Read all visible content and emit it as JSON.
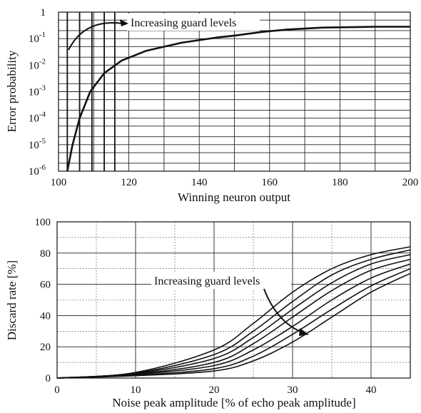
{
  "chart_data": [
    {
      "type": "line",
      "xlabel": "Winning neuron output",
      "ylabel": "Error probability",
      "xlim": [
        100,
        200
      ],
      "ylim": [
        1e-06,
        1
      ],
      "yscale": "log",
      "grid": true,
      "xticks": [
        "100",
        "120",
        "140",
        "160",
        "180",
        "200"
      ],
      "yticks": [
        {
          "base": "1",
          "exp": ""
        },
        {
          "base": "10",
          "exp": "-1"
        },
        {
          "base": "10",
          "exp": "-2"
        },
        {
          "base": "10",
          "exp": "-3"
        },
        {
          "base": "10",
          "exp": "-4"
        },
        {
          "base": "10",
          "exp": "-5"
        },
        {
          "base": "10",
          "exp": "-6"
        }
      ],
      "series": [
        {
          "values": [
            [
              102.5,
              1e-06
            ],
            [
              104,
              1e-05
            ],
            [
              106,
              0.0001
            ],
            [
              109,
              0.001
            ],
            [
              113,
              0.005
            ],
            [
              118,
              0.015
            ],
            [
              125,
              0.035
            ],
            [
              135,
              0.07
            ],
            [
              145,
              0.11
            ],
            [
              150,
              0.13
            ],
            [
              158,
              0.18
            ],
            [
              165,
              0.22
            ],
            [
              175,
              0.26
            ],
            [
              190,
              0.28
            ],
            [
              200,
              0.28
            ]
          ]
        }
      ],
      "guard_levels": [
        102.5,
        106,
        109.5,
        113,
        116
      ],
      "annotation": "Increasing guard levels"
    },
    {
      "type": "line",
      "xlabel": "Noise peak amplitude [% of echo peak amplitude]",
      "ylabel": "Discard rate [%]",
      "xlim": [
        0,
        45
      ],
      "ylim": [
        0,
        100
      ],
      "grid": true,
      "xticks": [
        "0",
        "10",
        "20",
        "30",
        "40"
      ],
      "yticks": [
        "0",
        "20",
        "40",
        "60",
        "80",
        "100"
      ],
      "series": [
        {
          "values": [
            [
              0,
              0
            ],
            [
              10,
              3.6
            ],
            [
              20,
              18
            ],
            [
              25,
              35
            ],
            [
              30,
              55
            ],
            [
              35,
              70
            ],
            [
              40,
              79
            ],
            [
              45,
              84
            ]
          ]
        },
        {
          "values": [
            [
              0,
              0
            ],
            [
              10,
              3.2
            ],
            [
              20,
              15
            ],
            [
              25,
              30
            ],
            [
              30,
              49
            ],
            [
              35,
              66
            ],
            [
              40,
              76
            ],
            [
              45,
              82
            ]
          ]
        },
        {
          "values": [
            [
              0,
              0
            ],
            [
              10,
              2.9
            ],
            [
              20,
              12.5
            ],
            [
              25,
              26
            ],
            [
              30,
              44
            ],
            [
              35,
              61
            ],
            [
              40,
              73
            ],
            [
              45,
              79
            ]
          ]
        },
        {
          "values": [
            [
              0,
              0
            ],
            [
              10,
              2.5
            ],
            [
              20,
              10
            ],
            [
              25,
              22
            ],
            [
              30,
              39
            ],
            [
              35,
              56
            ],
            [
              40,
              69
            ],
            [
              45,
              76
            ]
          ]
        },
        {
          "values": [
            [
              0,
              0
            ],
            [
              10,
              2.2
            ],
            [
              20,
              8
            ],
            [
              25,
              18
            ],
            [
              30,
              33
            ],
            [
              35,
              50
            ],
            [
              40,
              64
            ],
            [
              45,
              73
            ]
          ]
        },
        {
          "values": [
            [
              0,
              0
            ],
            [
              10,
              1.8
            ],
            [
              20,
              6
            ],
            [
              25,
              14
            ],
            [
              30,
              28
            ],
            [
              35,
              44
            ],
            [
              40,
              59
            ],
            [
              45,
              70
            ]
          ]
        },
        {
          "values": [
            [
              0,
              0
            ],
            [
              10,
              1.5
            ],
            [
              20,
              4.5
            ],
            [
              25,
              11
            ],
            [
              30,
              23
            ],
            [
              35,
              39
            ],
            [
              40,
              55
            ],
            [
              45,
              67
            ]
          ]
        }
      ],
      "annotation": "Increasing guard levels"
    }
  ]
}
